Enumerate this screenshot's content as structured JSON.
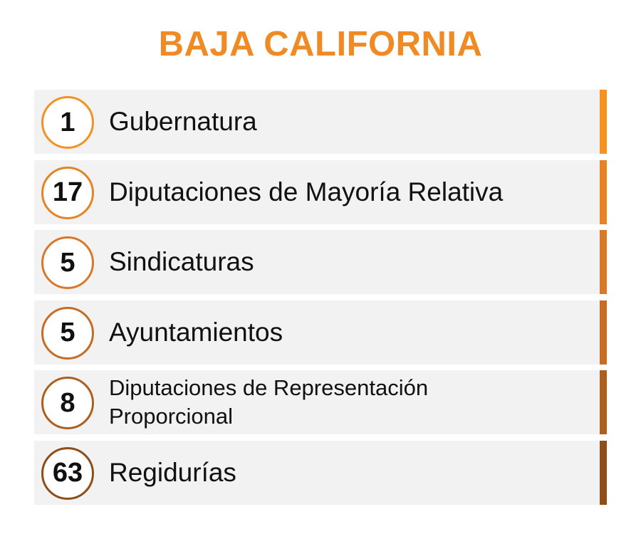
{
  "title": "BAJA CALIFORNIA",
  "colors": {
    "title": "#f08a24",
    "row_background": "#f2f2f2",
    "text": "#111111"
  },
  "items": [
    {
      "number": "1",
      "label": "Gubernatura",
      "color": "#f29222"
    },
    {
      "number": "17",
      "label": "Diputaciones de Mayoría Relativa",
      "color": "#e58426"
    },
    {
      "number": "5",
      "label": "Sindicaturas",
      "color": "#d8792a"
    },
    {
      "number": "5",
      "label": "Ayuntamientos",
      "color": "#c56d25"
    },
    {
      "number": "8",
      "label": "Diputaciones de Representación Proporcional",
      "color": "#ad5f1f"
    },
    {
      "number": "63",
      "label": "Regidurías",
      "color": "#8e4e1a"
    }
  ]
}
